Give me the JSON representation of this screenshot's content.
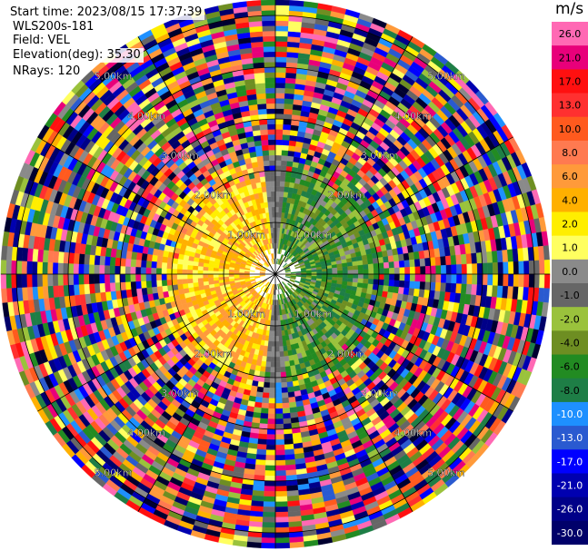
{
  "header": {
    "start_time": "Start time: 2023/08/15 17:37:39",
    "instrument": "WLS200s-181",
    "field": "Field: VEL",
    "elevation": "Elevation(deg): 35.30",
    "nrays": "NRays: 120"
  },
  "colorbar": {
    "unit": "m/s",
    "ticks": [
      "26.0",
      "21.0",
      "17.0",
      "13.0",
      "10.0",
      "8.0",
      "6.0",
      "4.0",
      "2.0",
      "1.0",
      "0.0",
      "-1.0",
      "-2.0",
      "-4.0",
      "-6.0",
      "-8.0",
      "-10.0",
      "-13.0",
      "-17.0",
      "-21.0",
      "-26.0",
      "-30.0"
    ],
    "colors": [
      "#ff69b4",
      "#e8007a",
      "#ff1010",
      "#ff3030",
      "#ff5a1e",
      "#ff7a50",
      "#ff9a3a",
      "#ffb000",
      "#ffee00",
      "#ffff60",
      "#8a8a8a",
      "#666666",
      "#9ac23c",
      "#6e8e22",
      "#228b22",
      "#1e7e46",
      "#1e90ff",
      "#2a5ad0",
      "#0000ff",
      "#0000b0",
      "#000088",
      "#00006a",
      "#000030"
    ]
  },
  "chart_data": {
    "type": "heatmap",
    "title": "",
    "projection": "PPI (polar)",
    "n_rays": 120,
    "field": "VEL",
    "units": "m/s",
    "range_ring_labels": [
      "1.00km",
      "2.00km",
      "3.00km",
      "4.00km",
      "5.00km"
    ],
    "range_rings_km": [
      1,
      2,
      3,
      4,
      5
    ],
    "max_range_km": 5.3,
    "value_range": [
      -30,
      26
    ],
    "azimuth_spokes_deg": [
      0,
      30,
      60,
      90,
      120,
      150,
      180,
      210,
      240,
      270,
      300,
      330
    ]
  }
}
